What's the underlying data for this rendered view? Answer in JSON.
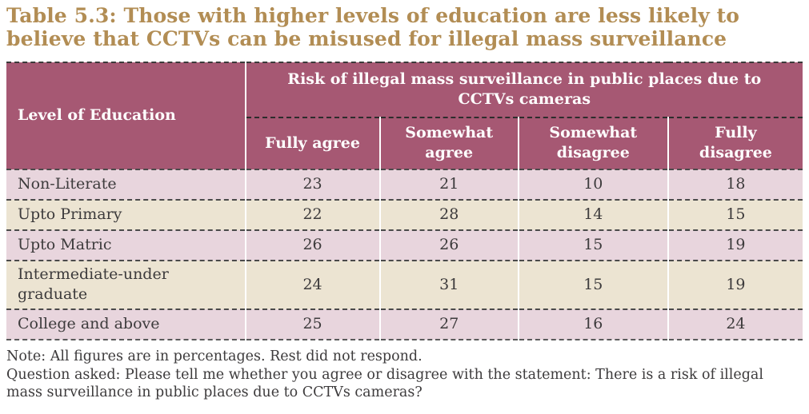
{
  "title": "Table 5.3: Those with higher levels of education are less likely to believe that CCTVs can be misused for illegal mass surveillance",
  "table": {
    "corner_header": "Level of Education",
    "group_header": "Risk of illegal mass surveillance in public places due to CCTVs cameras",
    "columns": [
      "Fully agree",
      "Somewhat agree",
      "Somewhat disagree",
      "Fully disagree"
    ],
    "rows": [
      {
        "label": "Non-Literate",
        "values": [
          23,
          21,
          10,
          18
        ]
      },
      {
        "label": "Upto Primary",
        "values": [
          22,
          28,
          14,
          15
        ]
      },
      {
        "label": "Upto Matric",
        "values": [
          26,
          26,
          15,
          19
        ]
      },
      {
        "label": "Intermediate-under graduate",
        "values": [
          24,
          31,
          15,
          19
        ]
      },
      {
        "label": "College and above",
        "values": [
          25,
          27,
          16,
          24
        ]
      }
    ]
  },
  "notes": {
    "note": "Note: All figures are in percentages. Rest did not respond.",
    "question": "Question asked: Please tell me whether you agree or disagree with the statement: There is a risk of illegal mass surveillance in public places due to CCTVs cameras?"
  },
  "colors": {
    "title": "#b28d54",
    "header_bg": "#a65873",
    "row_pink": "#e8d5dd",
    "row_cream": "#ece4d2",
    "text": "#3d3b3c"
  }
}
